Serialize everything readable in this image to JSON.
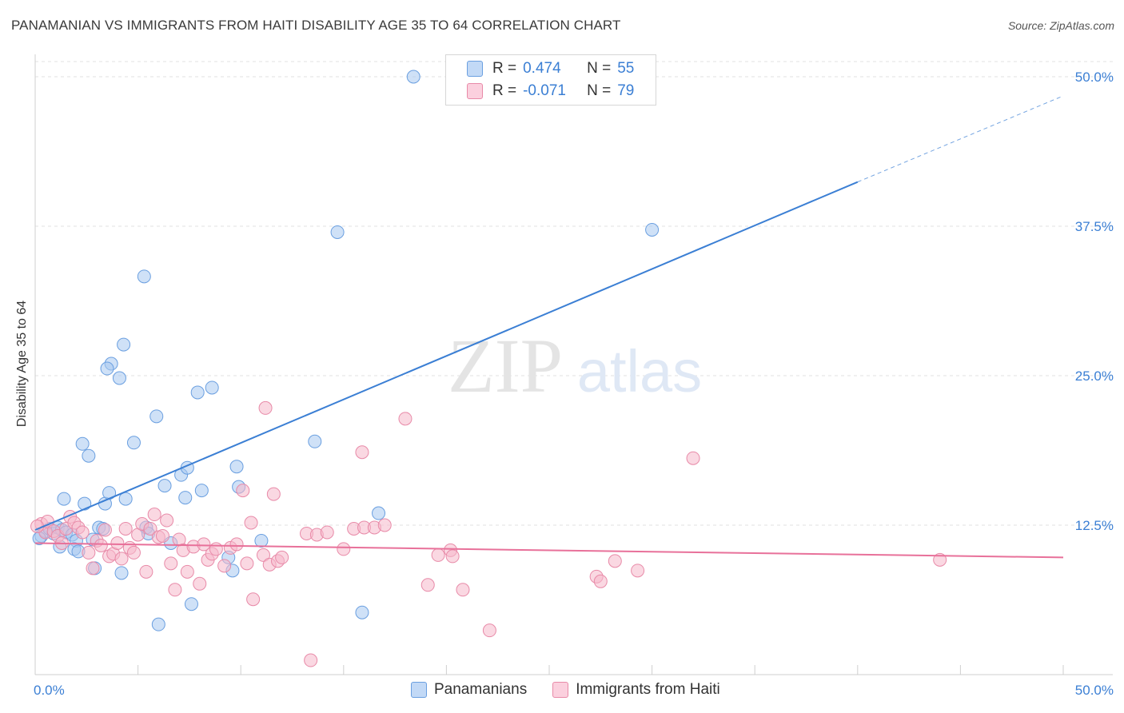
{
  "title": "PANAMANIAN VS IMMIGRANTS FROM HAITI DISABILITY AGE 35 TO 64 CORRELATION CHART",
  "source": "Source: ZipAtlas.com",
  "watermark": {
    "zip": "ZIP",
    "atlas": "atlas"
  },
  "legend": {
    "rows": [
      {
        "r_label": "R =",
        "r_value": "0.474",
        "n_label": "N =",
        "n_value": "55",
        "color": "#a8c8f0"
      },
      {
        "r_label": "R =",
        "r_value": "-0.071",
        "n_label": "N =",
        "n_value": "79",
        "color": "#f6b8cb"
      }
    ]
  },
  "bottom_legend": [
    "Panamanians",
    "Immigrants from Haiti"
  ],
  "chart_data": {
    "type": "scatter",
    "title": "PANAMANIAN VS IMMIGRANTS FROM HAITI DISABILITY AGE 35 TO 64 CORRELATION CHART",
    "ylabel": "Disability Age 35 to 64",
    "xlabel": "",
    "xlim": [
      0,
      50
    ],
    "ylim": [
      0,
      52.5
    ],
    "x_tick_labels": [
      "0.0%",
      "50.0%"
    ],
    "y_tick_values": [
      12.5,
      25,
      37.5,
      50
    ],
    "y_tick_labels": [
      "12.5%",
      "25.0%",
      "37.5%",
      "50.0%"
    ],
    "grid": true,
    "colors": {
      "panamanians": "#3b7fd4",
      "haiti": "#e8719a"
    },
    "series": [
      {
        "name": "Panamanians",
        "color": "#a8c8f0",
        "stroke": "#6a9fe0",
        "trend": {
          "x0": 0,
          "y0": 12.1,
          "x1": 40,
          "y1": 41.2,
          "dashed_to_x": 50,
          "dashed_to_y": 48.4
        },
        "points": [
          [
            0.3,
            11.6
          ],
          [
            0.5,
            12.0
          ],
          [
            0.7,
            12.2
          ],
          [
            0.9,
            11.8
          ],
          [
            1.1,
            12.3
          ],
          [
            1.3,
            12.1
          ],
          [
            1.5,
            11.9
          ],
          [
            1.2,
            10.7
          ],
          [
            1.4,
            14.7
          ],
          [
            1.8,
            11.7
          ],
          [
            2.0,
            11.2
          ],
          [
            1.9,
            10.5
          ],
          [
            2.1,
            10.3
          ],
          [
            2.3,
            19.3
          ],
          [
            2.4,
            14.3
          ],
          [
            2.6,
            18.3
          ],
          [
            2.8,
            11.3
          ],
          [
            2.9,
            8.9
          ],
          [
            3.1,
            12.3
          ],
          [
            3.3,
            12.2
          ],
          [
            3.4,
            14.3
          ],
          [
            3.6,
            15.2
          ],
          [
            3.7,
            26.0
          ],
          [
            3.5,
            25.6
          ],
          [
            4.1,
            24.8
          ],
          [
            4.3,
            27.6
          ],
          [
            4.4,
            14.7
          ],
          [
            4.2,
            8.5
          ],
          [
            4.8,
            19.4
          ],
          [
            5.3,
            33.3
          ],
          [
            5.4,
            12.3
          ],
          [
            5.5,
            11.8
          ],
          [
            5.9,
            21.6
          ],
          [
            6.0,
            4.2
          ],
          [
            6.3,
            15.8
          ],
          [
            6.6,
            11.0
          ],
          [
            7.1,
            16.7
          ],
          [
            7.3,
            14.8
          ],
          [
            7.4,
            17.3
          ],
          [
            7.6,
            5.9
          ],
          [
            7.9,
            23.6
          ],
          [
            8.1,
            15.4
          ],
          [
            8.6,
            24.0
          ],
          [
            9.4,
            9.8
          ],
          [
            9.6,
            8.7
          ],
          [
            9.8,
            17.4
          ],
          [
            9.9,
            15.7
          ],
          [
            11.0,
            11.2
          ],
          [
            13.6,
            19.5
          ],
          [
            14.7,
            37.0
          ],
          [
            15.9,
            5.2
          ],
          [
            16.7,
            13.5
          ],
          [
            18.4,
            50.0
          ],
          [
            30.0,
            37.2
          ],
          [
            0.2,
            11.4
          ]
        ]
      },
      {
        "name": "Immigrants from Haiti",
        "color": "#f6b8cb",
        "stroke": "#e88aa8",
        "trend": {
          "x0": 0,
          "y0": 11.0,
          "x1": 50,
          "y1": 9.8
        },
        "points": [
          [
            0.3,
            12.6
          ],
          [
            0.5,
            11.9
          ],
          [
            0.6,
            12.8
          ],
          [
            0.9,
            12.0
          ],
          [
            1.1,
            11.6
          ],
          [
            1.3,
            11.0
          ],
          [
            1.5,
            12.2
          ],
          [
            1.7,
            13.2
          ],
          [
            1.9,
            12.7
          ],
          [
            2.1,
            12.3
          ],
          [
            2.3,
            11.9
          ],
          [
            2.6,
            10.2
          ],
          [
            2.8,
            8.9
          ],
          [
            3.0,
            11.2
          ],
          [
            3.2,
            10.8
          ],
          [
            3.4,
            12.1
          ],
          [
            3.6,
            9.9
          ],
          [
            3.8,
            10.1
          ],
          [
            4.0,
            11.0
          ],
          [
            4.2,
            9.7
          ],
          [
            4.4,
            12.2
          ],
          [
            4.6,
            10.6
          ],
          [
            4.8,
            10.2
          ],
          [
            5.0,
            11.7
          ],
          [
            5.2,
            12.6
          ],
          [
            5.4,
            8.6
          ],
          [
            5.6,
            12.2
          ],
          [
            5.8,
            13.4
          ],
          [
            6.0,
            11.5
          ],
          [
            6.2,
            11.6
          ],
          [
            6.4,
            12.9
          ],
          [
            6.6,
            9.3
          ],
          [
            6.8,
            7.1
          ],
          [
            7.0,
            11.3
          ],
          [
            7.2,
            10.4
          ],
          [
            7.4,
            8.6
          ],
          [
            7.7,
            10.7
          ],
          [
            8.0,
            7.6
          ],
          [
            8.2,
            10.9
          ],
          [
            8.4,
            9.6
          ],
          [
            8.6,
            10.1
          ],
          [
            8.8,
            10.5
          ],
          [
            9.2,
            9.1
          ],
          [
            9.5,
            10.6
          ],
          [
            9.8,
            10.9
          ],
          [
            10.1,
            15.4
          ],
          [
            10.3,
            9.3
          ],
          [
            10.5,
            12.7
          ],
          [
            10.6,
            6.3
          ],
          [
            11.1,
            10.0
          ],
          [
            11.2,
            22.3
          ],
          [
            11.4,
            9.2
          ],
          [
            11.6,
            15.1
          ],
          [
            11.8,
            9.5
          ],
          [
            12.0,
            9.8
          ],
          [
            13.2,
            11.8
          ],
          [
            13.4,
            1.2
          ],
          [
            13.7,
            11.7
          ],
          [
            14.2,
            11.9
          ],
          [
            15.0,
            10.5
          ],
          [
            15.5,
            12.2
          ],
          [
            15.9,
            18.6
          ],
          [
            16.0,
            12.3
          ],
          [
            16.5,
            12.3
          ],
          [
            17.0,
            12.5
          ],
          [
            18.0,
            21.4
          ],
          [
            19.1,
            7.5
          ],
          [
            19.6,
            10.0
          ],
          [
            20.2,
            10.4
          ],
          [
            20.3,
            9.9
          ],
          [
            20.8,
            7.1
          ],
          [
            22.1,
            3.7
          ],
          [
            27.3,
            8.2
          ],
          [
            27.5,
            7.8
          ],
          [
            28.2,
            9.5
          ],
          [
            29.3,
            8.7
          ],
          [
            32.0,
            18.1
          ],
          [
            44.0,
            9.6
          ],
          [
            0.1,
            12.4
          ]
        ]
      }
    ]
  }
}
